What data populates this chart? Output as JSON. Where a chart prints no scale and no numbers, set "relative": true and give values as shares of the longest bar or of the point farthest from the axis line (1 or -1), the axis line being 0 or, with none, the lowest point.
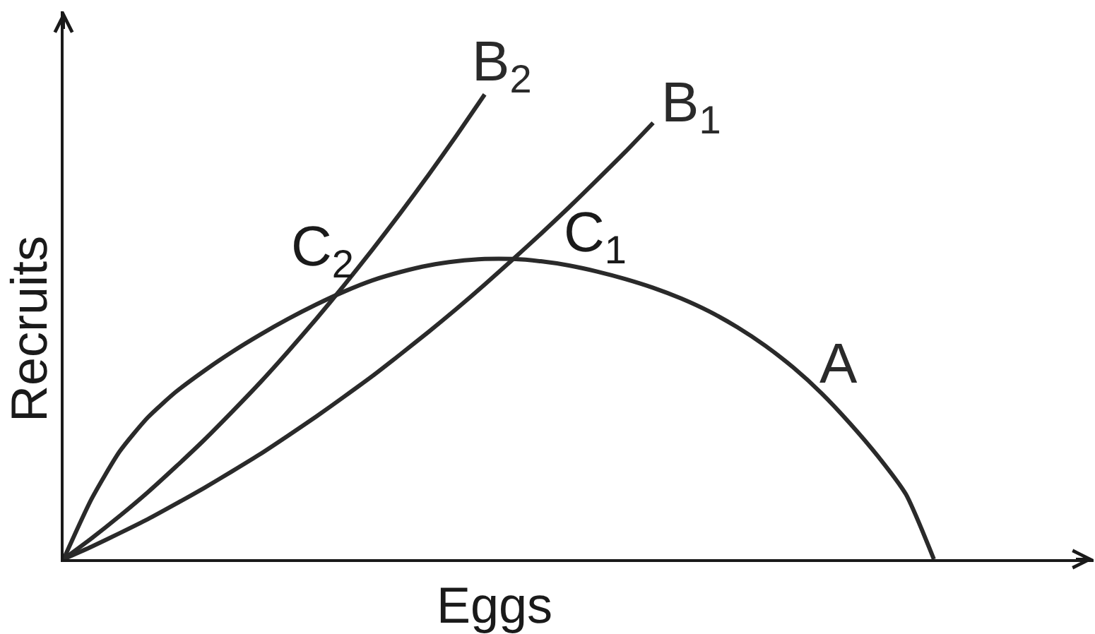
{
  "chart_data": {
    "type": "line",
    "relative": true,
    "xlabel": "Eggs",
    "ylabel": "Recruits",
    "categories": [
      null,
      null,
      null,
      null,
      null,
      null,
      null,
      null,
      null,
      null,
      null,
      null,
      null,
      null,
      null,
      null,
      null,
      null,
      null,
      null,
      null,
      null,
      null,
      null,
      null,
      null,
      null,
      null,
      null,
      null,
      null,
      null
    ],
    "series": [
      {
        "name": "A",
        "color": "#2a2a2a",
        "values": [
          0,
          0.13,
          0.232,
          0.305,
          0.36,
          0.405,
          0.446,
          0.483,
          0.517,
          0.548,
          0.576,
          0.6,
          0.618,
          0.632,
          0.641,
          0.646,
          0.646,
          0.641,
          0.632,
          0.619,
          0.603,
          0.584,
          0.561,
          0.533,
          0.499,
          0.459,
          0.412,
          0.357,
          0.293,
          0.222,
          0.14,
          0
        ]
      },
      {
        "name": "B$_{1}$",
        "color": "#2a2a2a",
        "values": [
          0,
          0.027,
          0.056,
          0.086,
          0.119,
          0.153,
          0.189,
          0.226,
          0.266,
          0.307,
          0.35,
          0.394,
          0.441,
          0.489,
          0.539,
          0.591,
          0.645,
          0.7,
          0.757,
          0.816,
          0.876,
          0.939,
          null,
          null,
          null,
          null,
          null,
          null,
          null,
          null,
          null,
          null
        ]
      },
      {
        "name": "B$_{2}$",
        "color": "#2a2a2a",
        "values": [
          0,
          0.045,
          0.093,
          0.144,
          0.199,
          0.256,
          0.317,
          0.38,
          0.447,
          0.517,
          0.59,
          0.666,
          0.745,
          0.827,
          0.912,
          1,
          null,
          null,
          null,
          null,
          null,
          null,
          null,
          null,
          null,
          null,
          null,
          null,
          null,
          null,
          null,
          null
        ]
      }
    ],
    "annotations": [
      "C$_{1}$",
      "C$_{2}$"
    ]
  }
}
